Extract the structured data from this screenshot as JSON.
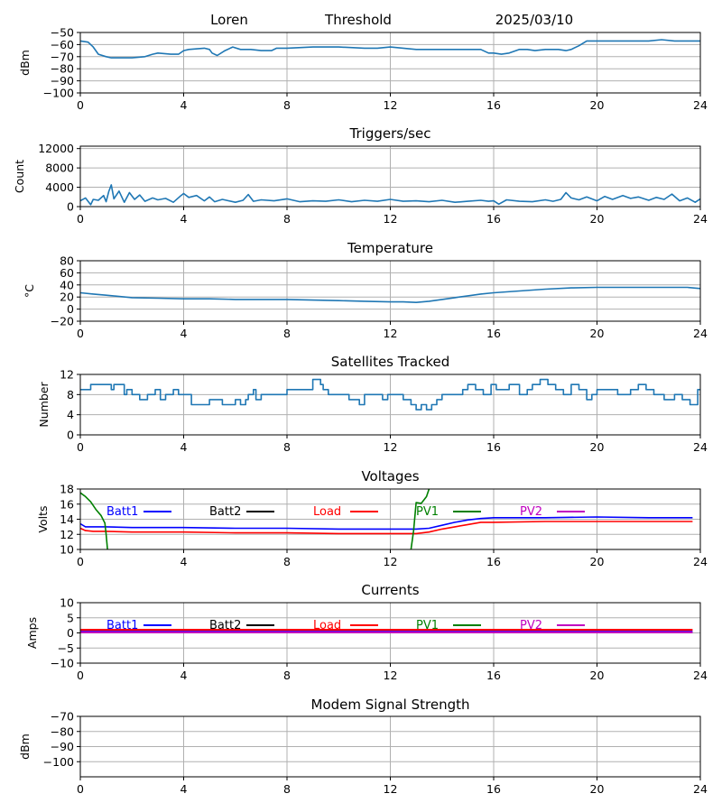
{
  "header": {
    "name": "Loren",
    "mode": "Threshold",
    "date": "2025/03/10"
  },
  "chart_data": [
    {
      "id": "signal",
      "type": "line",
      "title": "",
      "xlabel": "",
      "ylabel": "dBm",
      "xlim": [
        0,
        24
      ],
      "ylim": [
        -100,
        -50
      ],
      "xticks": [
        0,
        4,
        8,
        12,
        16,
        20,
        24
      ],
      "xtick_labels": [
        "0",
        "4",
        "8",
        "12",
        "16",
        "20",
        "24"
      ],
      "yticks": [
        -100,
        -90,
        -80,
        -70,
        -60,
        -50
      ],
      "ytick_labels": [
        "−100",
        "−90",
        "−80",
        "−70",
        "−60",
        "−50"
      ],
      "grid": true,
      "series": [
        {
          "color": "#1f77b4",
          "x": [
            0,
            0.3,
            0.5,
            0.7,
            1.0,
            1.2,
            1.5,
            2.0,
            2.5,
            2.8,
            3.0,
            3.5,
            3.8,
            4.0,
            4.2,
            4.8,
            5.0,
            5.1,
            5.3,
            5.6,
            5.9,
            6.2,
            6.6,
            7.0,
            7.4,
            7.6,
            8.0,
            9.0,
            10.0,
            11.0,
            11.5,
            12.0,
            12.5,
            13.0,
            14.0,
            15.0,
            15.2,
            15.5,
            15.8,
            16.0,
            16.3,
            16.6,
            17.0,
            17.3,
            17.6,
            18.0,
            18.5,
            18.8,
            19.0,
            19.3,
            19.6,
            20.0,
            21.0,
            22.0,
            22.5,
            23.0,
            24.0
          ],
          "y": [
            -57,
            -58,
            -62,
            -68,
            -70,
            -71,
            -71,
            -71,
            -70,
            -68,
            -67,
            -68,
            -68,
            -65,
            -64,
            -63,
            -64,
            -67,
            -69,
            -65,
            -62,
            -64,
            -64,
            -65,
            -65,
            -63,
            -63,
            -62,
            -62,
            -63,
            -63,
            -62,
            -63,
            -64,
            -64,
            -64,
            -64,
            -64,
            -67,
            -67,
            -68,
            -67,
            -64,
            -64,
            -65,
            -64,
            -64,
            -65,
            -64,
            -61,
            -57,
            -57,
            -57,
            -57,
            -56,
            -57,
            -57
          ]
        }
      ]
    },
    {
      "id": "triggers",
      "type": "line",
      "title": "Triggers/sec",
      "xlabel": "",
      "ylabel": "Count",
      "xlim": [
        0,
        24
      ],
      "ylim": [
        0,
        12500
      ],
      "xticks": [
        0,
        4,
        8,
        12,
        16,
        20,
        24
      ],
      "xtick_labels": [
        "0",
        "4",
        "8",
        "12",
        "16",
        "20",
        "24"
      ],
      "yticks": [
        0,
        4000,
        8000,
        12000
      ],
      "ytick_labels": [
        "0",
        "4000",
        "8000",
        "12000"
      ],
      "grid": true,
      "series": [
        {
          "color": "#1f77b4",
          "x": [
            0,
            0.2,
            0.4,
            0.5,
            0.7,
            0.9,
            1.0,
            1.1,
            1.2,
            1.3,
            1.5,
            1.7,
            1.9,
            2.1,
            2.3,
            2.5,
            2.8,
            3.0,
            3.3,
            3.6,
            3.9,
            4.0,
            4.2,
            4.5,
            4.8,
            5.0,
            5.2,
            5.5,
            6.0,
            6.3,
            6.5,
            6.7,
            7.0,
            7.5,
            8.0,
            8.5,
            9.0,
            9.5,
            10.0,
            10.5,
            11.0,
            11.5,
            12.0,
            12.5,
            13.0,
            13.5,
            14.0,
            14.5,
            15.0,
            15.5,
            15.8,
            16.0,
            16.2,
            16.5,
            17.0,
            17.5,
            18.0,
            18.3,
            18.6,
            18.8,
            19.0,
            19.3,
            19.6,
            20.0,
            20.3,
            20.6,
            21.0,
            21.3,
            21.6,
            22.0,
            22.3,
            22.6,
            22.9,
            23.2,
            23.5,
            23.8,
            24.0
          ],
          "y": [
            1200,
            1800,
            400,
            1500,
            1300,
            2300,
            1000,
            3100,
            4500,
            1600,
            3200,
            900,
            2900,
            1500,
            2400,
            1100,
            1800,
            1400,
            1700,
            900,
            2300,
            2700,
            1900,
            2300,
            1200,
            2000,
            1000,
            1500,
            900,
            1300,
            2500,
            1100,
            1400,
            1200,
            1600,
            1000,
            1200,
            1100,
            1400,
            1000,
            1300,
            1100,
            1500,
            1100,
            1200,
            1000,
            1300,
            900,
            1100,
            1300,
            1100,
            1200,
            500,
            1400,
            1100,
            1000,
            1400,
            1100,
            1500,
            2900,
            1800,
            1400,
            2000,
            1200,
            2100,
            1500,
            2300,
            1700,
            2000,
            1300,
            1900,
            1500,
            2600,
            1200,
            1800,
            900,
            1600
          ]
        }
      ]
    },
    {
      "id": "temperature",
      "type": "line",
      "title": "Temperature",
      "xlabel": "",
      "ylabel": "°C",
      "xlim": [
        0,
        24
      ],
      "ylim": [
        -20,
        80
      ],
      "xticks": [
        0,
        4,
        8,
        12,
        16,
        20,
        24
      ],
      "xtick_labels": [
        "0",
        "4",
        "8",
        "12",
        "16",
        "20",
        "24"
      ],
      "yticks": [
        -20,
        0,
        20,
        40,
        60,
        80
      ],
      "ytick_labels": [
        "−20",
        "0",
        "20",
        "40",
        "60",
        "80"
      ],
      "grid": true,
      "series": [
        {
          "color": "#1f77b4",
          "x": [
            0,
            0.5,
            1,
            2,
            3,
            4,
            5,
            6,
            7,
            8,
            9,
            10,
            11,
            12,
            12.5,
            13,
            13.5,
            14,
            14.5,
            15,
            15.5,
            16,
            17,
            18,
            19,
            20,
            21,
            22,
            23,
            23.5,
            24
          ],
          "y": [
            27,
            25,
            23,
            19,
            18,
            17,
            17,
            16,
            16,
            16,
            15,
            14,
            13,
            12,
            12,
            11,
            13,
            16,
            19,
            22,
            25,
            27,
            30,
            33,
            35,
            36,
            36,
            36,
            36,
            36,
            34
          ]
        }
      ]
    },
    {
      "id": "satellites",
      "type": "line",
      "title": "Satellites Tracked",
      "xlabel": "",
      "ylabel": "Number",
      "xlim": [
        0,
        24
      ],
      "ylim": [
        0,
        12
      ],
      "xticks": [
        0,
        4,
        8,
        12,
        16,
        20,
        24
      ],
      "xtick_labels": [
        "0",
        "4",
        "8",
        "12",
        "16",
        "20",
        "24"
      ],
      "yticks": [
        0,
        4,
        8,
        12
      ],
      "ytick_labels": [
        "0",
        "4",
        "8",
        "12"
      ],
      "grid": true,
      "step": true,
      "series": [
        {
          "color": "#1f77b4",
          "x": [
            0,
            0.4,
            1.2,
            1.3,
            1.7,
            1.8,
            2.0,
            2.3,
            2.6,
            2.9,
            3.1,
            3.3,
            3.6,
            3.8,
            4.2,
            4.3,
            5.0,
            5.5,
            6.0,
            6.2,
            6.4,
            6.5,
            6.7,
            6.8,
            7.0,
            7.3,
            8.0,
            8.9,
            9.0,
            9.3,
            9.4,
            9.6,
            10.0,
            10.4,
            10.8,
            11.0,
            11.5,
            11.7,
            11.9,
            12.0,
            12.5,
            12.8,
            13.0,
            13.2,
            13.4,
            13.6,
            13.8,
            14.0,
            14.3,
            14.8,
            15.0,
            15.3,
            15.6,
            15.9,
            16.1,
            16.3,
            16.6,
            17.0,
            17.3,
            17.5,
            17.8,
            18.1,
            18.4,
            18.7,
            19.0,
            19.3,
            19.6,
            19.8,
            20.0,
            20.4,
            20.8,
            21.3,
            21.6,
            21.9,
            22.2,
            22.6,
            23.0,
            23.3,
            23.6,
            23.9,
            24.0
          ],
          "y": [
            9,
            10,
            9,
            10,
            8,
            9,
            8,
            7,
            8,
            9,
            7,
            8,
            9,
            8,
            8,
            6,
            7,
            6,
            7,
            6,
            7,
            8,
            9,
            7,
            8,
            8,
            9,
            9,
            11,
            10,
            9,
            8,
            8,
            7,
            6,
            8,
            8,
            7,
            8,
            8,
            7,
            6,
            5,
            6,
            5,
            6,
            7,
            8,
            8,
            9,
            10,
            9,
            8,
            10,
            9,
            9,
            10,
            8,
            9,
            10,
            11,
            10,
            9,
            8,
            10,
            9,
            7,
            8,
            9,
            9,
            8,
            9,
            10,
            9,
            8,
            7,
            8,
            7,
            6,
            9,
            9
          ]
        }
      ]
    },
    {
      "id": "voltages",
      "type": "line",
      "title": "Voltages",
      "xlabel": "",
      "ylabel": "Volts",
      "xlim": [
        0,
        24
      ],
      "ylim": [
        10,
        18
      ],
      "xticks": [
        0,
        4,
        8,
        12,
        16,
        20,
        24
      ],
      "xtick_labels": [
        "0",
        "4",
        "8",
        "12",
        "16",
        "20",
        "24"
      ],
      "yticks": [
        10,
        12,
        14,
        16,
        18
      ],
      "ytick_labels": [
        "10",
        "12",
        "14",
        "16",
        "18"
      ],
      "grid": true,
      "legend": [
        {
          "name": "Batt1",
          "color": "#0000ff"
        },
        {
          "name": "Batt2",
          "color": "#000000"
        },
        {
          "name": "Load",
          "color": "#ff0000"
        },
        {
          "name": "PV1",
          "color": "#008000"
        },
        {
          "name": "PV2",
          "color": "#c000c0"
        }
      ],
      "series": [
        {
          "name": "Batt1",
          "color": "#0000ff",
          "x": [
            0,
            0.2,
            0.5,
            1,
            2,
            4,
            6,
            8,
            10,
            12,
            13,
            13.5,
            14,
            14.5,
            15,
            15.5,
            16,
            18,
            20,
            22,
            23.7
          ],
          "y": [
            13.4,
            13.0,
            13.0,
            13.0,
            12.9,
            12.9,
            12.8,
            12.8,
            12.7,
            12.7,
            12.7,
            12.8,
            13.2,
            13.6,
            13.9,
            14.1,
            14.2,
            14.2,
            14.3,
            14.2,
            14.2
          ]
        },
        {
          "name": "Load",
          "color": "#ff0000",
          "x": [
            0,
            0.2,
            0.5,
            1,
            2,
            4,
            6,
            8,
            10,
            12,
            13,
            13.5,
            14,
            14.5,
            15,
            15.5,
            16,
            18,
            20,
            22,
            23.7
          ],
          "y": [
            12.8,
            12.5,
            12.4,
            12.4,
            12.3,
            12.3,
            12.2,
            12.2,
            12.1,
            12.1,
            12.1,
            12.3,
            12.7,
            13.0,
            13.3,
            13.6,
            13.6,
            13.7,
            13.7,
            13.7,
            13.7
          ]
        },
        {
          "name": "PV1",
          "color": "#008000",
          "x": [
            0,
            0.2,
            0.4,
            0.6,
            0.8,
            0.95,
            1.0,
            1.05
          ],
          "y": [
            17.5,
            17.0,
            16.3,
            15.3,
            14.5,
            13.5,
            12.0,
            10.0
          ]
        },
        {
          "name": "PV1",
          "color": "#008000",
          "x": [
            12.8,
            12.9,
            13.0,
            13.2,
            13.4,
            13.5
          ],
          "y": [
            10.0,
            12.5,
            16.2,
            16.1,
            17.0,
            18.0
          ]
        }
      ]
    },
    {
      "id": "currents",
      "type": "line",
      "title": "Currents",
      "xlabel": "",
      "ylabel": "Amps",
      "xlim": [
        0,
        24
      ],
      "ylim": [
        -10,
        10
      ],
      "xticks": [
        0,
        4,
        8,
        12,
        16,
        20,
        24
      ],
      "xtick_labels": [
        "0",
        "4",
        "8",
        "12",
        "16",
        "20",
        "24"
      ],
      "yticks": [
        -10,
        -5,
        0,
        5,
        10
      ],
      "ytick_labels": [
        "−10",
        "−5",
        "0",
        "5",
        "10"
      ],
      "grid": true,
      "legend": [
        {
          "name": "Batt1",
          "color": "#0000ff"
        },
        {
          "name": "Batt2",
          "color": "#000000"
        },
        {
          "name": "Load",
          "color": "#ff0000"
        },
        {
          "name": "PV1",
          "color": "#008000"
        },
        {
          "name": "PV2",
          "color": "#c000c0"
        }
      ],
      "series": [
        {
          "name": "Load",
          "color": "#ff0000",
          "x": [
            0,
            6,
            12,
            18,
            23.7
          ],
          "y": [
            1.0,
            1.0,
            1.0,
            1.0,
            1.0
          ]
        },
        {
          "name": "Batt1",
          "color": "#0000ff",
          "x": [
            0,
            6,
            12,
            18,
            23.7
          ],
          "y": [
            0.4,
            0.4,
            0.4,
            0.4,
            0.4
          ]
        },
        {
          "name": "PV2",
          "color": "#c000c0",
          "x": [
            0,
            6,
            12,
            18,
            23.7
          ],
          "y": [
            0.2,
            0.2,
            0.2,
            0.2,
            0.2
          ]
        }
      ]
    },
    {
      "id": "modem",
      "type": "line",
      "title": "Modem Signal Strength",
      "xlabel": "",
      "ylabel": "dBm",
      "xlim": [
        0,
        24
      ],
      "ylim": [
        -110,
        -70
      ],
      "xticks": [
        0,
        4,
        8,
        12,
        16,
        20,
        24
      ],
      "xtick_labels": [
        "0",
        "4",
        "8",
        "12",
        "16",
        "20",
        "24"
      ],
      "yticks": [
        -100,
        -90,
        -80,
        -70
      ],
      "ytick_labels": [
        "−100",
        "−90",
        "−80",
        "−70"
      ],
      "grid": true,
      "series": []
    }
  ]
}
